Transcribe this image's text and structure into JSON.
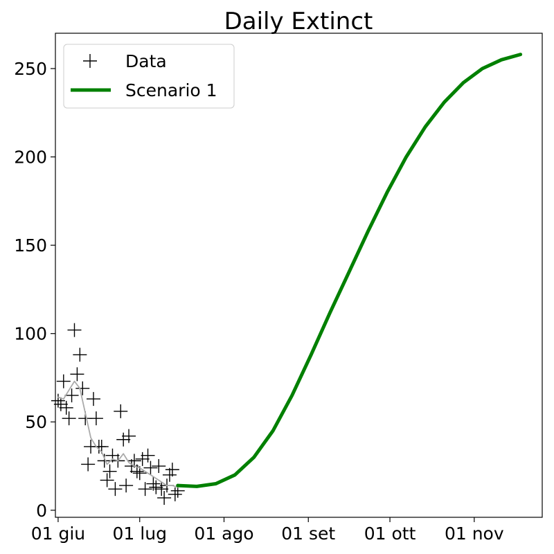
{
  "chart_data": {
    "type": "line",
    "title": "Daily Extinct",
    "xlabel": "",
    "ylabel": "",
    "x_domain": [
      "2020-05-31",
      "2020-11-26"
    ],
    "ylim": [
      -4,
      270
    ],
    "x_ticks": [
      {
        "date": "2020-06-01",
        "label": "01 giu"
      },
      {
        "date": "2020-07-01",
        "label": "01 lug"
      },
      {
        "date": "2020-08-01",
        "label": "01 ago"
      },
      {
        "date": "2020-09-01",
        "label": "01 set"
      },
      {
        "date": "2020-10-01",
        "label": "01 ott"
      },
      {
        "date": "2020-11-01",
        "label": "01 nov"
      }
    ],
    "y_ticks": [
      0,
      50,
      100,
      150,
      200,
      250
    ],
    "grid": false,
    "legend": {
      "placement": "top-left",
      "entries": [
        {
          "label": "Data",
          "marker": "plus",
          "color": "#000000"
        },
        {
          "label": "Scenario 1",
          "marker": "line",
          "color": "#008000"
        }
      ]
    },
    "series": [
      {
        "name": "Data",
        "style": "scatter-plus",
        "color": "#000000",
        "points": [
          [
            "2020-06-01",
            62
          ],
          [
            "2020-06-02",
            60
          ],
          [
            "2020-06-03",
            73
          ],
          [
            "2020-06-04",
            58
          ],
          [
            "2020-06-05",
            52
          ],
          [
            "2020-06-06",
            65
          ],
          [
            "2020-06-07",
            102
          ],
          [
            "2020-06-08",
            77
          ],
          [
            "2020-06-09",
            88
          ],
          [
            "2020-06-10",
            69
          ],
          [
            "2020-06-11",
            52
          ],
          [
            "2020-06-12",
            26
          ],
          [
            "2020-06-13",
            36
          ],
          [
            "2020-06-14",
            63
          ],
          [
            "2020-06-15",
            52
          ],
          [
            "2020-06-16",
            36
          ],
          [
            "2020-06-17",
            36
          ],
          [
            "2020-06-18",
            28
          ],
          [
            "2020-06-19",
            17
          ],
          [
            "2020-06-20",
            22
          ],
          [
            "2020-06-21",
            31
          ],
          [
            "2020-06-22",
            12
          ],
          [
            "2020-06-23",
            28
          ],
          [
            "2020-06-24",
            56
          ],
          [
            "2020-06-25",
            40
          ],
          [
            "2020-06-26",
            14
          ],
          [
            "2020-06-27",
            42
          ],
          [
            "2020-06-28",
            25
          ],
          [
            "2020-06-29",
            28
          ],
          [
            "2020-06-30",
            22
          ],
          [
            "2020-07-01",
            21
          ],
          [
            "2020-07-02",
            29
          ],
          [
            "2020-07-03",
            12
          ],
          [
            "2020-07-04",
            31
          ],
          [
            "2020-07-05",
            24
          ],
          [
            "2020-07-06",
            15
          ],
          [
            "2020-07-07",
            13
          ],
          [
            "2020-07-08",
            25
          ],
          [
            "2020-07-09",
            12
          ],
          [
            "2020-07-10",
            7
          ],
          [
            "2020-07-11",
            14
          ],
          [
            "2020-07-12",
            20
          ],
          [
            "2020-07-13",
            23
          ],
          [
            "2020-07-14",
            9
          ],
          [
            "2020-07-15",
            11
          ]
        ]
      },
      {
        "name": "",
        "style": "smoothed-line",
        "color": "#aaaaaa",
        "points": [
          [
            "2020-06-01",
            64
          ],
          [
            "2020-06-03",
            63
          ],
          [
            "2020-06-05",
            68
          ],
          [
            "2020-06-07",
            73
          ],
          [
            "2020-06-09",
            69
          ],
          [
            "2020-06-11",
            55
          ],
          [
            "2020-06-13",
            41
          ],
          [
            "2020-06-15",
            36
          ],
          [
            "2020-06-17",
            33
          ],
          [
            "2020-06-19",
            26
          ],
          [
            "2020-06-21",
            29
          ],
          [
            "2020-06-23",
            28
          ],
          [
            "2020-06-25",
            32
          ],
          [
            "2020-06-27",
            27
          ],
          [
            "2020-06-29",
            25
          ],
          [
            "2020-07-01",
            24
          ],
          [
            "2020-07-03",
            22
          ],
          [
            "2020-07-05",
            20
          ],
          [
            "2020-07-07",
            18
          ],
          [
            "2020-07-09",
            16
          ],
          [
            "2020-07-11",
            14
          ],
          [
            "2020-07-13",
            14
          ],
          [
            "2020-07-15",
            13
          ]
        ]
      },
      {
        "name": "Scenario 1",
        "style": "line",
        "color": "#008000",
        "points": [
          [
            "2020-07-15",
            14
          ],
          [
            "2020-07-22",
            13.5
          ],
          [
            "2020-07-29",
            15
          ],
          [
            "2020-08-05",
            20
          ],
          [
            "2020-08-12",
            30
          ],
          [
            "2020-08-19",
            45
          ],
          [
            "2020-08-26",
            65
          ],
          [
            "2020-09-02",
            88
          ],
          [
            "2020-09-09",
            112
          ],
          [
            "2020-09-16",
            135
          ],
          [
            "2020-09-23",
            158
          ],
          [
            "2020-09-30",
            180
          ],
          [
            "2020-10-07",
            200
          ],
          [
            "2020-10-14",
            217
          ],
          [
            "2020-10-21",
            231
          ],
          [
            "2020-10-28",
            242
          ],
          [
            "2020-11-04",
            250
          ],
          [
            "2020-11-11",
            255
          ],
          [
            "2020-11-18",
            258
          ]
        ]
      }
    ]
  }
}
